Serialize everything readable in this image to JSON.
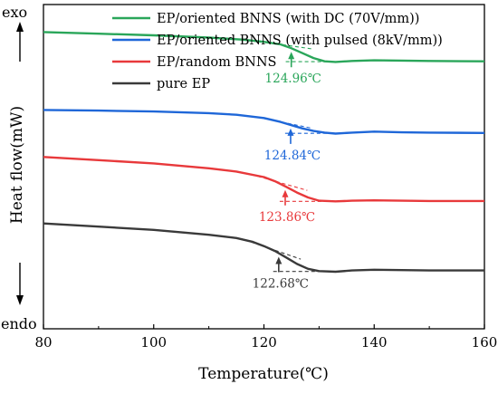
{
  "chart_data": {
    "type": "line",
    "xlabel": "Temperature(℃)",
    "ylabel": "Heat flow(mW)",
    "y_top_label": "exo",
    "y_bottom_label": "endo",
    "xlim": [
      80,
      160
    ],
    "xticks": [
      "80",
      "100",
      "120",
      "140",
      "160"
    ],
    "y_ticks_shown": false,
    "grid": false,
    "legend_position": "top-left",
    "legend": [
      {
        "name": "EP/oriented BNNS (with DC (70V/mm))",
        "color": "#2aa65a"
      },
      {
        "name": "EP/oriented BNNS (with pulsed (8kV/mm))",
        "color": "#1f67d8"
      },
      {
        "name": "EP/random BNNS",
        "color": "#e8393b"
      },
      {
        "name": "pure EP",
        "color": "#3a3a3a"
      }
    ],
    "series": [
      {
        "color": "#2aa65a",
        "tg_label": "124.96℃",
        "tg_x": 124.96,
        "points": [
          [
            80,
            0.75
          ],
          [
            90,
            0.7
          ],
          [
            100,
            0.65
          ],
          [
            110,
            0.58
          ],
          [
            116,
            0.52
          ],
          [
            120,
            0.45
          ],
          [
            123,
            0.37
          ],
          [
            125,
            0.25
          ],
          [
            127,
            0.1
          ],
          [
            129,
            -0.05
          ],
          [
            131,
            -0.15
          ],
          [
            133,
            -0.17
          ],
          [
            136,
            -0.14
          ],
          [
            140,
            -0.12
          ],
          [
            145,
            -0.13
          ],
          [
            150,
            -0.14
          ],
          [
            160,
            -0.15
          ]
        ]
      },
      {
        "color": "#1f67d8",
        "tg_label": "124.84℃",
        "tg_x": 124.84,
        "points": [
          [
            80,
            -1.65
          ],
          [
            90,
            -1.67
          ],
          [
            100,
            -1.7
          ],
          [
            110,
            -1.75
          ],
          [
            115,
            -1.8
          ],
          [
            120,
            -1.9
          ],
          [
            123,
            -2.02
          ],
          [
            125,
            -2.12
          ],
          [
            127,
            -2.22
          ],
          [
            129,
            -2.3
          ],
          [
            131,
            -2.35
          ],
          [
            133,
            -2.38
          ],
          [
            136,
            -2.35
          ],
          [
            140,
            -2.32
          ],
          [
            145,
            -2.34
          ],
          [
            150,
            -2.35
          ],
          [
            160,
            -2.36
          ]
        ]
      },
      {
        "color": "#e8393b",
        "tg_label": "123.86℃",
        "tg_x": 123.86,
        "points": [
          [
            80,
            -3.1
          ],
          [
            90,
            -3.2
          ],
          [
            100,
            -3.3
          ],
          [
            110,
            -3.45
          ],
          [
            115,
            -3.55
          ],
          [
            120,
            -3.72
          ],
          [
            122,
            -3.85
          ],
          [
            124,
            -4.02
          ],
          [
            126,
            -4.2
          ],
          [
            128,
            -4.35
          ],
          [
            130,
            -4.45
          ],
          [
            133,
            -4.47
          ],
          [
            136,
            -4.45
          ],
          [
            140,
            -4.44
          ],
          [
            145,
            -4.45
          ],
          [
            150,
            -4.46
          ],
          [
            160,
            -4.46
          ]
        ]
      },
      {
        "color": "#3a3a3a",
        "tg_label": "122.68℃",
        "tg_x": 122.68,
        "points": [
          [
            80,
            -5.15
          ],
          [
            90,
            -5.25
          ],
          [
            100,
            -5.35
          ],
          [
            110,
            -5.5
          ],
          [
            115,
            -5.6
          ],
          [
            118,
            -5.72
          ],
          [
            120,
            -5.85
          ],
          [
            122,
            -6.0
          ],
          [
            124,
            -6.2
          ],
          [
            126,
            -6.4
          ],
          [
            128,
            -6.55
          ],
          [
            130,
            -6.62
          ],
          [
            133,
            -6.64
          ],
          [
            136,
            -6.6
          ],
          [
            140,
            -6.58
          ],
          [
            145,
            -6.59
          ],
          [
            150,
            -6.6
          ],
          [
            160,
            -6.6
          ]
        ]
      }
    ]
  }
}
